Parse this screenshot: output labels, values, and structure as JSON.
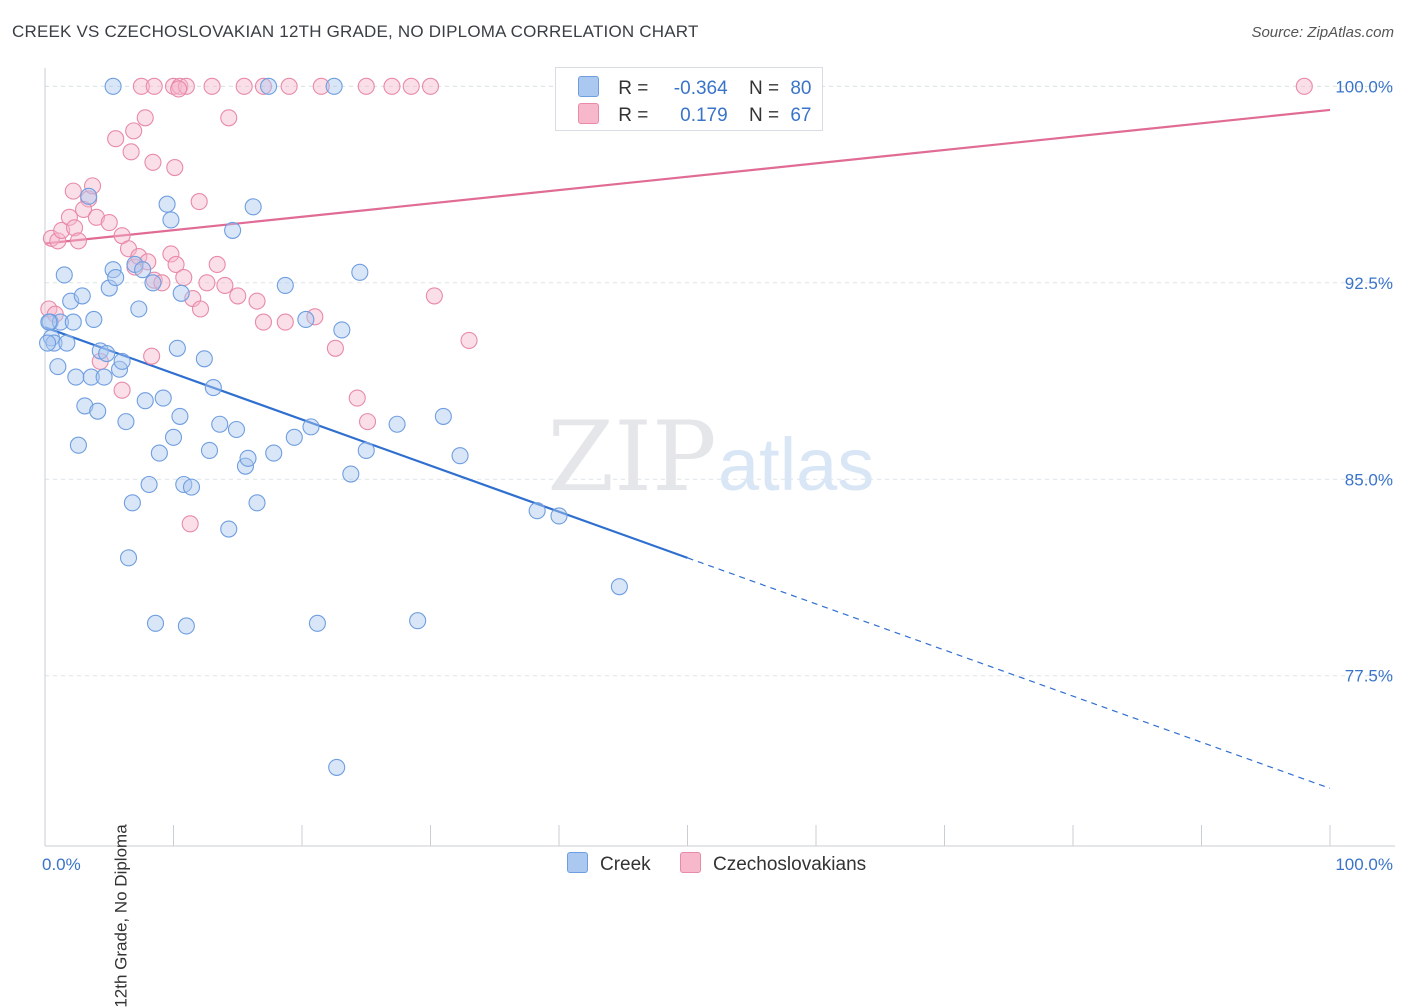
{
  "title": "CREEK VS CZECHOSLOVAKIAN 12TH GRADE, NO DIPLOMA CORRELATION CHART",
  "source": "Source: ZipAtlas.com",
  "watermark": {
    "zip": "ZIP",
    "atlas": "atlas"
  },
  "legend": {
    "rows": [
      {
        "r_label": "R =",
        "r_value": "-0.364",
        "n_label": "N =",
        "n_value": "80",
        "color": "#aac8f0",
        "border": "#6f9ee0"
      },
      {
        "r_label": "R =",
        "r_value": "0.179",
        "n_label": "N =",
        "n_value": "67",
        "color": "#f7b8cc",
        "border": "#e88aa8"
      }
    ]
  },
  "bottom_legend": [
    {
      "label": "Creek",
      "color": "#aac8f0",
      "border": "#6f9ee0"
    },
    {
      "label": "Czechoslovakians",
      "color": "#f7b8cc",
      "border": "#e88aa8"
    }
  ],
  "chart_data": {
    "type": "scatter",
    "title": "CREEK VS CZECHOSLOVAKIAN 12TH GRADE, NO DIPLOMA CORRELATION CHART",
    "xlabel": "",
    "ylabel": "12th Grade, No Diploma",
    "xlim": [
      0,
      100
    ],
    "ylim": [
      71.0,
      100.7
    ],
    "x_tick_labels": [
      "0.0%",
      "100.0%"
    ],
    "y_ticks": [
      77.5,
      85.0,
      92.5,
      100.0
    ],
    "y_tick_labels": [
      "77.5%",
      "85.0%",
      "92.5%",
      "100.0%"
    ],
    "grid": "horizontal dashed",
    "legend_position": "top-center",
    "colors": {
      "creek": "#6f9ee0",
      "creek_line": "#2f6fcf",
      "czech": "#e88aa8",
      "czech_line": "#e06b94",
      "axis_label": "#3a74c9"
    },
    "series": [
      {
        "name": "Creek",
        "trend": {
          "x0": 0,
          "y0": 90.8,
          "x1": 50,
          "y1": 82.0,
          "x_end": 100,
          "y_end": 73.2
        },
        "points": [
          [
            5.3,
            100.0
          ],
          [
            17.4,
            100.0
          ],
          [
            22.5,
            100.0
          ],
          [
            0.4,
            91.0
          ],
          [
            0.5,
            90.4
          ],
          [
            0.7,
            90.2
          ],
          [
            1.0,
            89.3
          ],
          [
            1.2,
            91.0
          ],
          [
            1.5,
            92.8
          ],
          [
            1.7,
            90.2
          ],
          [
            2.0,
            91.8
          ],
          [
            2.2,
            91.0
          ],
          [
            2.4,
            88.9
          ],
          [
            2.6,
            86.3
          ],
          [
            2.9,
            92.0
          ],
          [
            3.1,
            87.8
          ],
          [
            3.4,
            95.8
          ],
          [
            3.6,
            88.9
          ],
          [
            3.8,
            91.1
          ],
          [
            4.1,
            87.6
          ],
          [
            4.3,
            89.9
          ],
          [
            4.6,
            88.9
          ],
          [
            4.8,
            89.8
          ],
          [
            5.0,
            92.3
          ],
          [
            5.3,
            93.0
          ],
          [
            5.5,
            92.7
          ],
          [
            5.8,
            89.2
          ],
          [
            6.0,
            89.5
          ],
          [
            6.3,
            87.2
          ],
          [
            6.5,
            82.0
          ],
          [
            6.8,
            84.1
          ],
          [
            7.0,
            93.2
          ],
          [
            7.3,
            91.5
          ],
          [
            7.6,
            93.0
          ],
          [
            7.8,
            88.0
          ],
          [
            8.1,
            84.8
          ],
          [
            8.4,
            92.5
          ],
          [
            8.6,
            79.5
          ],
          [
            8.9,
            86.0
          ],
          [
            9.2,
            88.1
          ],
          [
            9.5,
            95.5
          ],
          [
            9.8,
            94.9
          ],
          [
            10.0,
            86.6
          ],
          [
            10.3,
            90.0
          ],
          [
            10.5,
            87.4
          ],
          [
            10.6,
            92.1
          ],
          [
            10.8,
            84.8
          ],
          [
            11.0,
            79.4
          ],
          [
            11.4,
            84.7
          ],
          [
            12.4,
            89.6
          ],
          [
            12.8,
            86.1
          ],
          [
            13.1,
            88.5
          ],
          [
            13.6,
            87.1
          ],
          [
            14.3,
            83.1
          ],
          [
            14.6,
            94.5
          ],
          [
            14.9,
            86.9
          ],
          [
            15.6,
            85.5
          ],
          [
            15.8,
            85.8
          ],
          [
            16.2,
            95.4
          ],
          [
            16.5,
            84.1
          ],
          [
            17.8,
            86.0
          ],
          [
            18.7,
            92.4
          ],
          [
            19.4,
            86.6
          ],
          [
            20.3,
            91.1
          ],
          [
            20.7,
            87.0
          ],
          [
            21.2,
            79.5
          ],
          [
            22.7,
            74.0
          ],
          [
            23.1,
            90.7
          ],
          [
            23.8,
            85.2
          ],
          [
            24.5,
            92.9
          ],
          [
            25.0,
            86.1
          ],
          [
            27.4,
            87.1
          ],
          [
            29.0,
            79.6
          ],
          [
            31.0,
            87.4
          ],
          [
            32.3,
            85.9
          ],
          [
            38.3,
            83.8
          ],
          [
            40.0,
            83.6
          ],
          [
            44.7,
            80.9
          ],
          [
            0.3,
            91.0
          ],
          [
            0.2,
            90.2
          ]
        ]
      },
      {
        "name": "Czechoslovakians",
        "trend": {
          "x0": 0,
          "y0": 94.0,
          "x1": 100,
          "y1": 99.1
        },
        "points": [
          [
            7.5,
            100.0
          ],
          [
            8.5,
            100.0
          ],
          [
            10.0,
            100.0
          ],
          [
            10.5,
            100.0
          ],
          [
            11.0,
            100.0
          ],
          [
            13.0,
            100.0
          ],
          [
            15.5,
            100.0
          ],
          [
            17.0,
            100.0
          ],
          [
            19.0,
            100.0
          ],
          [
            21.5,
            100.0
          ],
          [
            25.0,
            100.0
          ],
          [
            27.0,
            100.0
          ],
          [
            28.5,
            100.0
          ],
          [
            30.0,
            100.0
          ],
          [
            98.0,
            100.0
          ],
          [
            10.4,
            99.9
          ],
          [
            7.8,
            98.8
          ],
          [
            14.3,
            98.8
          ],
          [
            5.5,
            98.0
          ],
          [
            6.7,
            97.5
          ],
          [
            6.9,
            98.3
          ],
          [
            8.4,
            97.1
          ],
          [
            10.1,
            96.9
          ],
          [
            2.2,
            96.0
          ],
          [
            3.4,
            95.7
          ],
          [
            3.7,
            96.2
          ],
          [
            12.0,
            95.6
          ],
          [
            0.5,
            94.2
          ],
          [
            1.0,
            94.1
          ],
          [
            1.3,
            94.5
          ],
          [
            1.9,
            95.0
          ],
          [
            2.3,
            94.6
          ],
          [
            2.6,
            94.1
          ],
          [
            3.0,
            95.3
          ],
          [
            4.0,
            95.0
          ],
          [
            5.0,
            94.8
          ],
          [
            6.0,
            94.3
          ],
          [
            6.5,
            93.8
          ],
          [
            7.0,
            93.1
          ],
          [
            7.3,
            93.5
          ],
          [
            8.0,
            93.3
          ],
          [
            8.5,
            92.6
          ],
          [
            9.1,
            92.5
          ],
          [
            9.8,
            93.6
          ],
          [
            10.2,
            93.2
          ],
          [
            10.8,
            92.7
          ],
          [
            11.5,
            91.9
          ],
          [
            12.1,
            91.5
          ],
          [
            12.6,
            92.5
          ],
          [
            13.4,
            93.2
          ],
          [
            14.0,
            92.4
          ],
          [
            15.0,
            92.0
          ],
          [
            16.5,
            91.8
          ],
          [
            17.0,
            91.0
          ],
          [
            18.7,
            91.0
          ],
          [
            21.0,
            91.2
          ],
          [
            22.6,
            90.0
          ],
          [
            24.3,
            88.1
          ],
          [
            25.1,
            87.2
          ],
          [
            30.3,
            92.0
          ],
          [
            33.0,
            90.3
          ],
          [
            0.3,
            91.5
          ],
          [
            0.8,
            91.3
          ],
          [
            4.3,
            89.5
          ],
          [
            6.0,
            88.4
          ],
          [
            8.3,
            89.7
          ],
          [
            11.3,
            83.3
          ]
        ]
      }
    ]
  }
}
